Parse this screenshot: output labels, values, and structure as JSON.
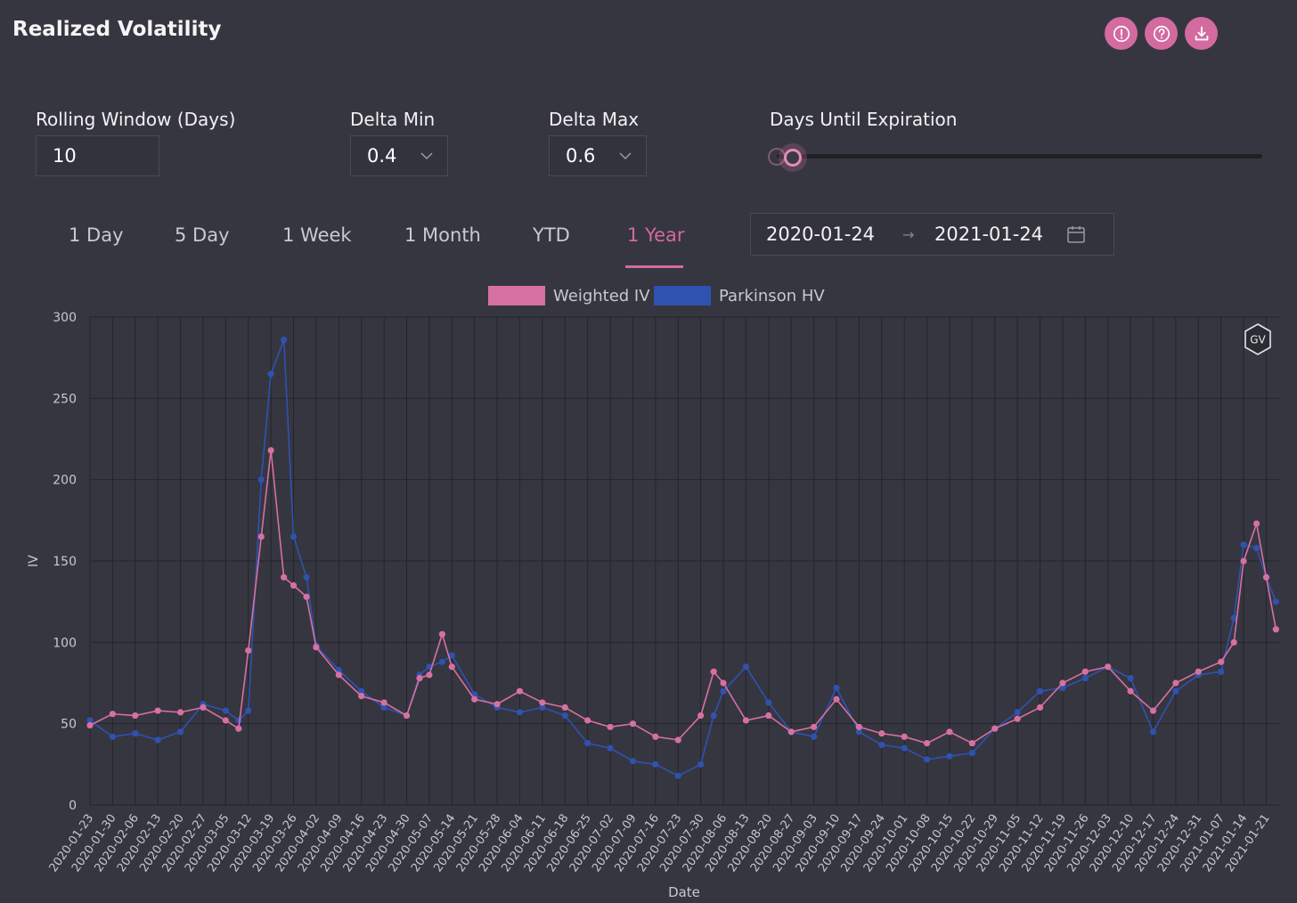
{
  "title": "Realized Volatility",
  "top_icons": [
    "alert-icon",
    "help-icon",
    "download-icon"
  ],
  "controls": {
    "rolling_window": {
      "label": "Rolling Window (Days)",
      "value": "10"
    },
    "delta_min": {
      "label": "Delta Min",
      "value": "0.4"
    },
    "delta_max": {
      "label": "Delta Max",
      "value": "0.6"
    },
    "days_until_expiration": {
      "label": "Days Until Expiration",
      "level": 0.03
    }
  },
  "tabs": [
    "1 Day",
    "5 Day",
    "1 Week",
    "1 Month",
    "YTD",
    "1 Year"
  ],
  "active_tab": "1 Year",
  "date_range": {
    "start": "2020-01-24",
    "end": "2021-01-24"
  },
  "watermark": "GV",
  "colors": {
    "accent": "#d36aa0",
    "weighted_iv": "#d770a2",
    "parkinson_hv": "#2f52b0",
    "background": "#363640"
  },
  "chart_data": {
    "type": "line",
    "xlabel": "Date",
    "ylabel": "IV",
    "ylim": [
      0,
      300
    ],
    "yticks": [
      0,
      50,
      100,
      150,
      200,
      250,
      300
    ],
    "grid": true,
    "legend_position": "top",
    "x_tick_labels": [
      "2020-01-23",
      "2020-01-30",
      "2020-02-06",
      "2020-02-13",
      "2020-02-20",
      "2020-02-27",
      "2020-03-05",
      "2020-03-12",
      "2020-03-19",
      "2020-03-26",
      "2020-04-02",
      "2020-04-09",
      "2020-04-16",
      "2020-04-23",
      "2020-04-30",
      "2020-05-07",
      "2020-05-14",
      "2020-05-21",
      "2020-05-28",
      "2020-06-04",
      "2020-06-11",
      "2020-06-18",
      "2020-06-25",
      "2020-07-02",
      "2020-07-09",
      "2020-07-16",
      "2020-07-23",
      "2020-07-30",
      "2020-08-06",
      "2020-08-13",
      "2020-08-20",
      "2020-08-27",
      "2020-09-03",
      "2020-09-10",
      "2020-09-17",
      "2020-09-24",
      "2020-10-01",
      "2020-10-08",
      "2020-10-15",
      "2020-10-22",
      "2020-10-29",
      "2020-11-05",
      "2020-11-12",
      "2020-11-19",
      "2020-11-26",
      "2020-12-03",
      "2020-12-10",
      "2020-12-17",
      "2020-12-24",
      "2020-12-31",
      "2021-01-07",
      "2021-01-14",
      "2021-01-21"
    ],
    "x_dates": [
      "2020-01-23",
      "2020-01-30",
      "2020-02-06",
      "2020-02-13",
      "2020-02-20",
      "2020-02-27",
      "2020-03-05",
      "2020-03-09",
      "2020-03-12",
      "2020-03-16",
      "2020-03-19",
      "2020-03-23",
      "2020-03-26",
      "2020-03-30",
      "2020-04-02",
      "2020-04-09",
      "2020-04-16",
      "2020-04-23",
      "2020-04-30",
      "2020-05-04",
      "2020-05-07",
      "2020-05-11",
      "2020-05-14",
      "2020-05-21",
      "2020-05-28",
      "2020-06-04",
      "2020-06-11",
      "2020-06-18",
      "2020-06-25",
      "2020-07-02",
      "2020-07-09",
      "2020-07-16",
      "2020-07-23",
      "2020-07-30",
      "2020-08-03",
      "2020-08-06",
      "2020-08-13",
      "2020-08-20",
      "2020-08-27",
      "2020-09-03",
      "2020-09-10",
      "2020-09-17",
      "2020-09-24",
      "2020-10-01",
      "2020-10-08",
      "2020-10-15",
      "2020-10-22",
      "2020-10-29",
      "2020-11-05",
      "2020-11-12",
      "2020-11-19",
      "2020-11-26",
      "2020-12-03",
      "2020-12-10",
      "2020-12-17",
      "2020-12-24",
      "2020-12-31",
      "2021-01-07",
      "2021-01-11",
      "2021-01-14",
      "2021-01-18",
      "2021-01-21",
      "2021-01-24"
    ],
    "series": [
      {
        "name": "Weighted IV",
        "values": [
          49,
          56,
          55,
          58,
          57,
          60,
          52,
          47,
          95,
          165,
          218,
          140,
          135,
          128,
          97,
          80,
          67,
          63,
          55,
          78,
          80,
          105,
          85,
          65,
          62,
          70,
          63,
          60,
          52,
          48,
          50,
          42,
          40,
          55,
          82,
          75,
          52,
          55,
          45,
          48,
          65,
          48,
          44,
          42,
          38,
          45,
          38,
          47,
          53,
          60,
          75,
          82,
          85,
          70,
          58,
          75,
          82,
          88,
          100,
          150,
          173,
          140,
          108
        ]
      },
      {
        "name": "Parkinson HV",
        "values": [
          52,
          42,
          44,
          40,
          45,
          62,
          58,
          52,
          58,
          200,
          265,
          286,
          165,
          140,
          98,
          83,
          70,
          60,
          55,
          80,
          85,
          88,
          92,
          68,
          60,
          57,
          60,
          55,
          38,
          35,
          27,
          25,
          18,
          25,
          55,
          70,
          85,
          63,
          45,
          42,
          72,
          45,
          37,
          35,
          28,
          30,
          32,
          47,
          57,
          70,
          72,
          78,
          85,
          78,
          45,
          70,
          80,
          82,
          115,
          160,
          158,
          140,
          125
        ]
      }
    ]
  }
}
